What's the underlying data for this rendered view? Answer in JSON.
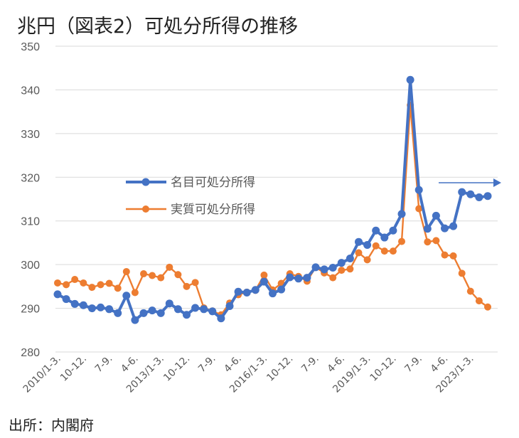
{
  "chart_data": {
    "type": "line",
    "title": "兆円（図表2）可処分所得の推移",
    "source": "出所：内閣府",
    "ylim": [
      280,
      350
    ],
    "y_ticks": [
      280,
      290,
      300,
      310,
      320,
      330,
      340,
      350
    ],
    "grid": true,
    "legend_position": "center-left",
    "x_tick_labels": [
      "2010/1-3.",
      "10-12.",
      "7-9.",
      "4-6.",
      "2013/1-3.",
      "10-12.",
      "7-9.",
      "4-6.",
      "2016/1-3.",
      "10-12.",
      "7-9.",
      "4-6.",
      "2019/1-3.",
      "10-12.",
      "7-9.",
      "4-6.",
      "2023/1-3."
    ],
    "x_tick_every": 3,
    "series": [
      {
        "name": "名目可処分所得",
        "color": "#4472C4",
        "values": [
          293.2,
          292.1,
          291.0,
          290.7,
          290.0,
          290.2,
          289.8,
          288.9,
          292.9,
          287.3,
          288.9,
          289.5,
          288.9,
          291.1,
          289.8,
          288.5,
          290.1,
          289.8,
          289.3,
          287.7,
          290.5,
          293.8,
          293.6,
          294.2,
          296.1,
          293.4,
          294.3,
          297.1,
          296.8,
          297.0,
          299.4,
          298.9,
          299.3,
          300.4,
          301.4,
          305.2,
          304.5,
          307.8,
          306.2,
          307.8,
          311.6,
          342.3,
          317.1,
          308.2,
          311.2,
          308.3,
          308.8,
          316.6,
          316.1,
          315.4,
          315.7
        ]
      },
      {
        "name": "実質可処分所得",
        "color": "#ED7D31",
        "values": [
          295.8,
          295.4,
          296.6,
          295.8,
          294.8,
          295.4,
          295.7,
          294.6,
          298.4,
          293.6,
          297.9,
          297.5,
          297.0,
          299.4,
          297.7,
          295.0,
          295.9,
          290.1,
          289.4,
          288.5,
          291.2,
          293.1,
          293.7,
          294.1,
          297.6,
          294.2,
          295.7,
          297.9,
          297.3,
          296.2,
          299.4,
          298.1,
          297.0,
          298.7,
          299.0,
          302.7,
          301.1,
          304.3,
          303.1,
          303.1,
          305.3,
          336.5,
          312.8,
          305.2,
          305.5,
          302.2,
          302.0,
          298.0,
          293.9,
          291.7,
          290.3
        ]
      }
    ]
  }
}
